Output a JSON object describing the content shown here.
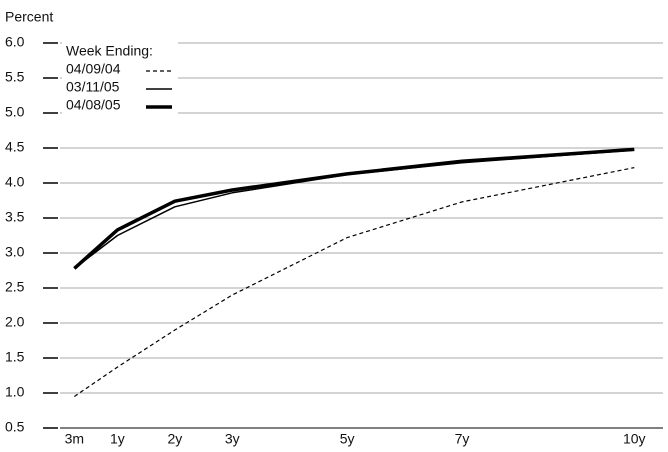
{
  "chart_data": {
    "type": "line",
    "y_axis_label": "Percent",
    "legend_title": "Week Ending:",
    "x": [
      0.25,
      1,
      2,
      3,
      5,
      7,
      10
    ],
    "xlim": [
      0,
      10.5
    ],
    "xticks": [
      {
        "value": 0.25,
        "label": "3m"
      },
      {
        "value": 1,
        "label": "1y"
      },
      {
        "value": 2,
        "label": "2y"
      },
      {
        "value": 3,
        "label": "3y"
      },
      {
        "value": 5,
        "label": "5y"
      },
      {
        "value": 7,
        "label": "7y"
      },
      {
        "value": 10,
        "label": "10y"
      }
    ],
    "ylim": [
      0.5,
      6.0
    ],
    "yticks": [
      0.5,
      {
        "value": 1,
        "label": "1.0"
      },
      1.5,
      {
        "value": 2,
        "label": "2.0"
      },
      2.5,
      {
        "value": 3,
        "label": "3.0"
      },
      3.5,
      {
        "value": 4,
        "label": "4.0"
      },
      4.5,
      {
        "value": 5,
        "label": "5.0"
      },
      5.5,
      {
        "value": 6,
        "label": "6.0"
      }
    ],
    "grid": true,
    "series": [
      {
        "name": "04/09/04",
        "color": "#000000",
        "style": "dashed",
        "width": 1.2,
        "values": [
          0.95,
          1.37,
          1.9,
          2.4,
          3.22,
          3.73,
          4.22
        ]
      },
      {
        "name": "03/11/05",
        "color": "#000000",
        "style": "solid",
        "width": 1.5,
        "values": [
          2.78,
          3.25,
          3.66,
          3.86,
          4.12,
          4.29,
          4.47
        ]
      },
      {
        "name": "04/08/05",
        "color": "#000000",
        "style": "solid",
        "width": 3.5,
        "values": [
          2.78,
          3.33,
          3.74,
          3.9,
          4.13,
          4.31,
          4.48
        ]
      }
    ]
  }
}
